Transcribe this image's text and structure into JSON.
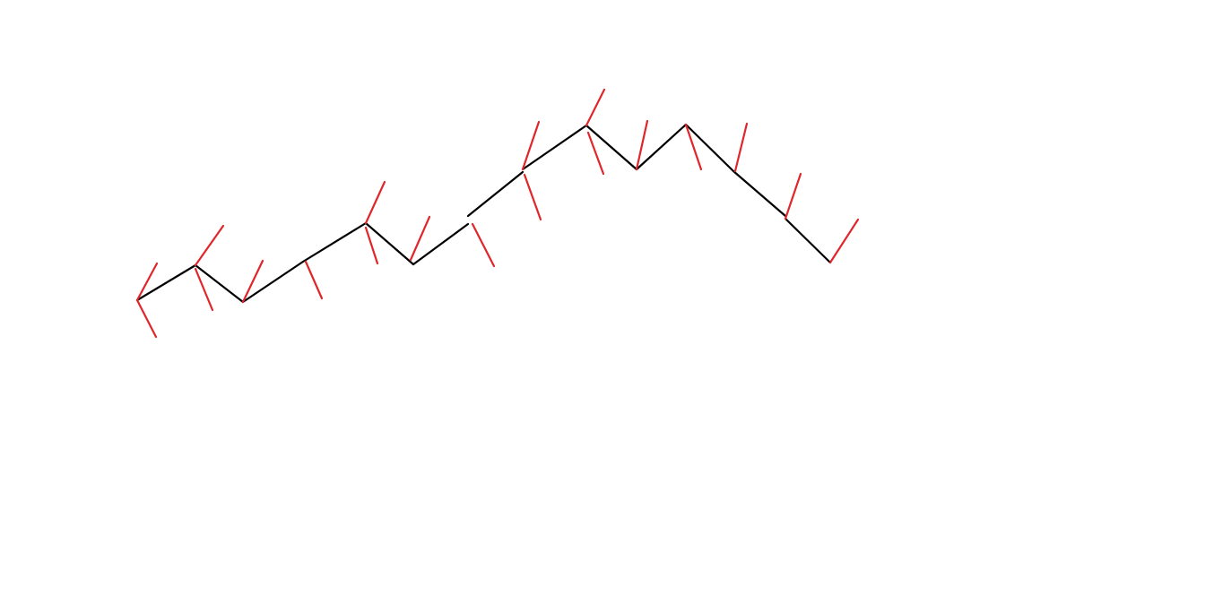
{
  "colors": {
    "background": "#ffffff",
    "chain": "#000000",
    "ticks": "#e0262b"
  }
}
